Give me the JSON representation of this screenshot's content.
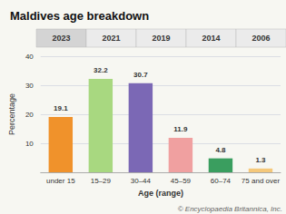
{
  "chart_data": {
    "type": "bar",
    "title": "Maldives age breakdown",
    "categories": [
      "under 15",
      "15–29",
      "30–44",
      "45–59",
      "60–74",
      "75 and over"
    ],
    "values": [
      19.1,
      32.2,
      30.7,
      11.9,
      4.8,
      1.3
    ],
    "colors": [
      "#f0922b",
      "#a8d880",
      "#7b68b5",
      "#f0a0a0",
      "#3a9e5f",
      "#f5c87a"
    ],
    "xlabel": "Age (range)",
    "ylabel": "Percentage",
    "ylim": [
      0,
      40
    ],
    "yticks": [
      10,
      20,
      30,
      40
    ],
    "grid": true,
    "data_labels": true,
    "annotations": [
      "2023",
      "2021",
      "2019",
      "2014",
      "2006",
      "© Encyclopaedia Britannica, Inc."
    ]
  }
}
